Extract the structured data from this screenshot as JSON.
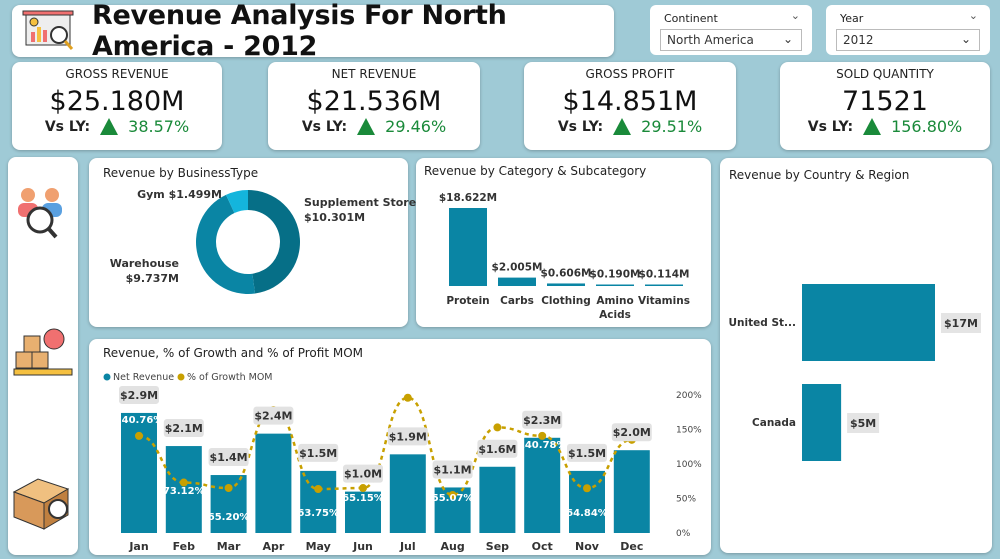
{
  "header": {
    "title": "Revenue Analysis For North America - 2012",
    "icon": "presentation-chart-icon"
  },
  "slicers": [
    {
      "label": "Continent",
      "value": "North America"
    },
    {
      "label": "Year",
      "value": "2012"
    }
  ],
  "kpis": [
    {
      "label": "GROSS REVENUE",
      "value": "$25.180M",
      "vs_label": "Vs LY:",
      "change": "38.57%",
      "trend": "up"
    },
    {
      "label": "NET REVENUE",
      "value": "$21.536M",
      "vs_label": "Vs LY:",
      "change": "29.46%",
      "trend": "up"
    },
    {
      "label": "GROSS PROFIT",
      "value": "$14.851M",
      "vs_label": "Vs LY:",
      "change": "29.51%",
      "trend": "up"
    },
    {
      "label": "SOLD QUANTITY",
      "value": "71521",
      "vs_label": "Vs LY:",
      "change": "156.80%",
      "trend": "up"
    }
  ],
  "nav_icons": [
    "customers-analysis-icon",
    "inventory-icon",
    "product-return-icon"
  ],
  "colors": {
    "bar": "#0a85a4",
    "donut": [
      "#066f87",
      "#0a85a4",
      "#14b5dc"
    ],
    "line": "#c8a000",
    "positive": "#1a8a3a"
  },
  "chart_data": [
    {
      "type": "pie",
      "title": "Revenue by BusinessType",
      "categories": [
        "Supplement Store",
        "Warehouse",
        "Gym"
      ],
      "values": [
        10.301,
        9.737,
        1.499
      ],
      "labels": [
        "$10.301M",
        "$9.737M",
        "$1.499M"
      ]
    },
    {
      "type": "bar",
      "title": "Revenue by Category & Subcategory",
      "categories": [
        "Protein",
        "Carbs",
        "Clothing",
        "Amino Acids",
        "Vitamins"
      ],
      "values": [
        18.622,
        2.005,
        0.606,
        0.19,
        0.114
      ],
      "labels": [
        "$18.622M",
        "$2.005M",
        "$0.606M",
        "$0.190M",
        "$0.114M"
      ]
    },
    {
      "type": "bar",
      "orientation": "horizontal",
      "title": "Revenue by Country & Region",
      "categories": [
        "United St...",
        "Canada"
      ],
      "values": [
        17,
        5
      ],
      "labels": [
        "$17M",
        "$5M"
      ]
    },
    {
      "type": "bar",
      "title": "Revenue, % of Growth and % of Profit MOM",
      "categories": [
        "Jan",
        "Feb",
        "Mar",
        "Apr",
        "May",
        "Jun",
        "Jul",
        "Aug",
        "Sep",
        "Oct",
        "Nov",
        "Dec"
      ],
      "series": [
        {
          "name": "Net Revenue",
          "type": "bar",
          "values": [
            2.9,
            2.1,
            1.4,
            2.4,
            1.5,
            1.0,
            1.9,
            1.1,
            1.6,
            2.3,
            1.5,
            2.0
          ],
          "labels": [
            "$2.9M",
            "$2.1M",
            "$1.4M",
            "$2.4M",
            "$1.5M",
            "$1.0M",
            "$1.9M",
            "$1.1M",
            "$1.6M",
            "$2.3M",
            "$1.5M",
            "$2.0M"
          ]
        },
        {
          "name": "% of Growth MOM",
          "type": "line",
          "values": [
            140.76,
            73.12,
            65.2,
            178,
            63.75,
            65.15,
            196,
            55.07,
            153,
            140.78,
            64.84,
            135
          ],
          "labels": [
            "140.76%",
            "73.12%",
            "65.20%",
            "",
            "63.75%",
            "65.15%",
            "",
            "55.07%",
            "",
            "140.78%",
            "64.84%",
            ""
          ]
        }
      ],
      "y2_ticks": [
        "0%",
        "50%",
        "100%",
        "150%",
        "200%"
      ],
      "y2lim": [
        0,
        200
      ],
      "legend": "top-left"
    }
  ]
}
